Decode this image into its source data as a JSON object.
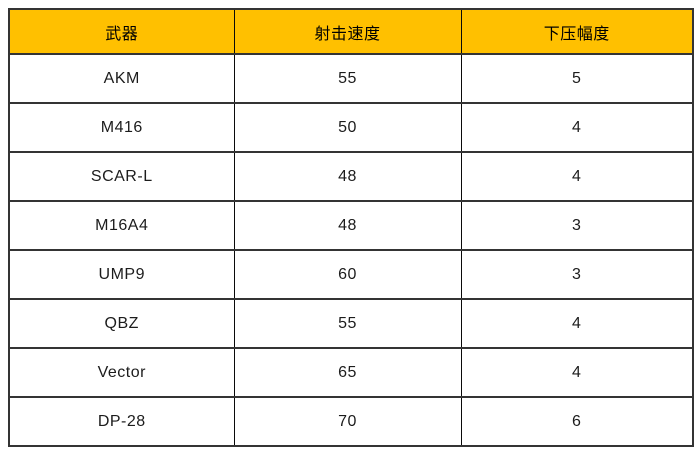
{
  "table": {
    "headers": [
      "武器",
      "射击速度",
      "下压幅度"
    ],
    "rows": [
      [
        "AKM",
        "55",
        "5"
      ],
      [
        "M416",
        "50",
        "4"
      ],
      [
        "SCAR-L",
        "48",
        "4"
      ],
      [
        "M16A4",
        "48",
        "3"
      ],
      [
        "UMP9",
        "60",
        "3"
      ],
      [
        "QBZ",
        "55",
        "4"
      ],
      [
        "Vector",
        "65",
        "4"
      ],
      [
        "DP-28",
        "70",
        "6"
      ]
    ]
  },
  "colors": {
    "header_background": "#FFC000",
    "header_text": "#000000",
    "cell_text": "#1c1c1c",
    "horizontal_border": "#343434",
    "vertical_border": "#0a0a0a",
    "row_background": "#FFFFFF",
    "page_background": "#FFFFFF"
  },
  "chart_data": {
    "type": "table",
    "title": "",
    "columns": [
      "武器",
      "射击速度",
      "下压幅度"
    ],
    "rows": [
      {
        "武器": "AKM",
        "射击速度": 55,
        "下压幅度": 5
      },
      {
        "武器": "M416",
        "射击速度": 50,
        "下压幅度": 4
      },
      {
        "武器": "SCAR-L",
        "射击速度": 48,
        "下压幅度": 4
      },
      {
        "武器": "M16A4",
        "射击速度": 48,
        "下压幅度": 3
      },
      {
        "武器": "UMP9",
        "射击速度": 60,
        "下压幅度": 3
      },
      {
        "武器": "QBZ",
        "射击速度": 55,
        "下压幅度": 4
      },
      {
        "武器": "Vector",
        "射击速度": 65,
        "下压幅度": 4
      },
      {
        "武器": "DP-28",
        "射击速度": 70,
        "下压幅度": 6
      }
    ],
    "layout_hints": {
      "header_fill": "#FFC000",
      "grid": "on",
      "text_align": "center"
    }
  }
}
